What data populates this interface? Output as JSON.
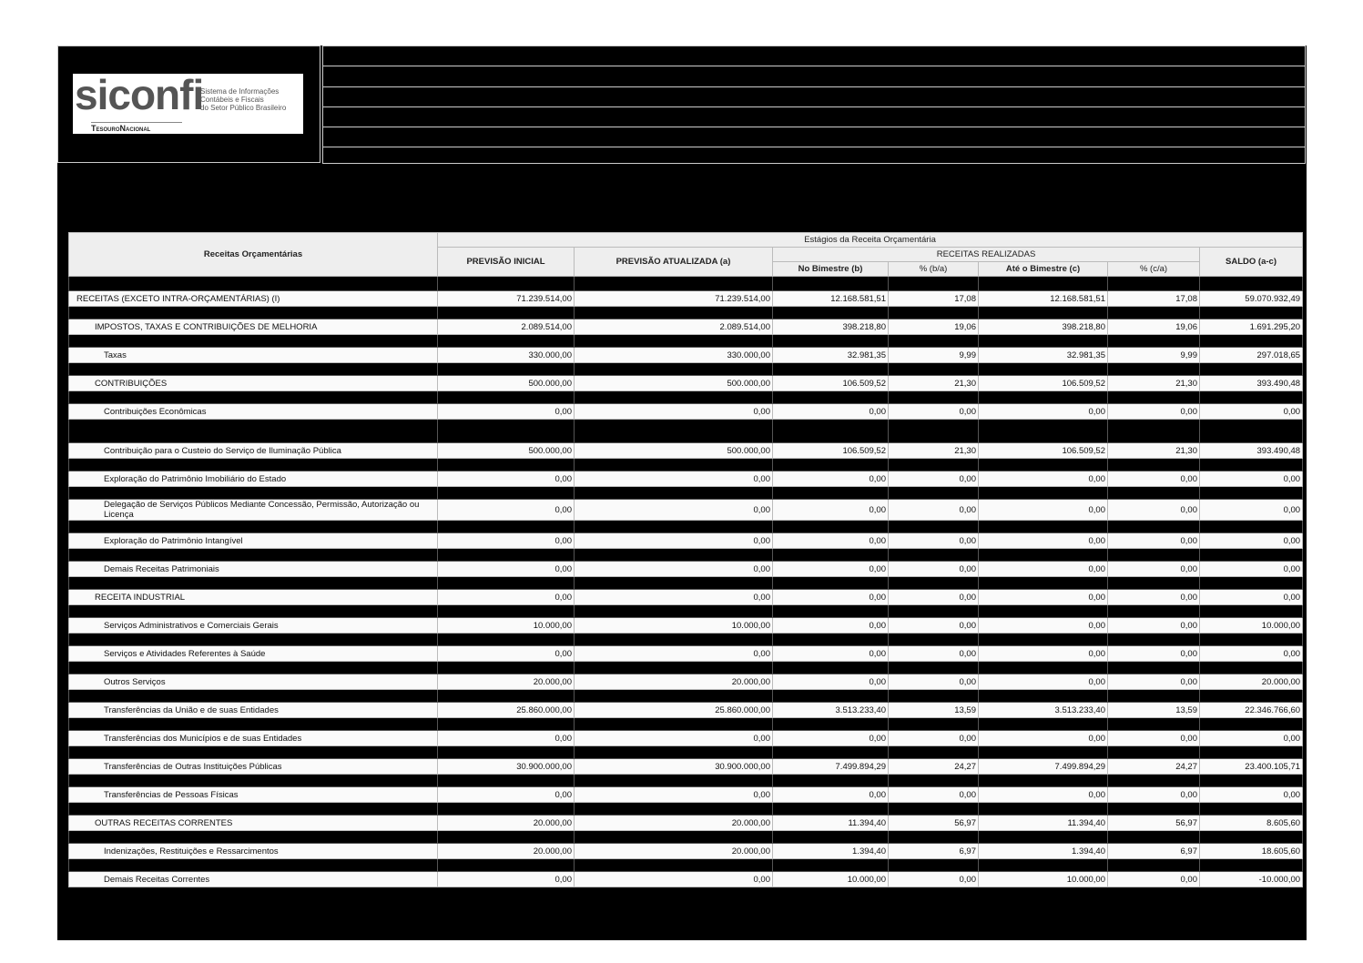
{
  "logo": {
    "brand": "siconfi",
    "tagline": [
      "Sistema de Informações",
      "Contábeis e Fiscais",
      "do Setor Público Brasileiro"
    ],
    "agency": "TesouroNacional"
  },
  "table": {
    "header": {
      "label_column": "Receitas Orçamentárias",
      "group": "Estágios da Receita Orçamentária",
      "initial": "PREVISÃO INICIAL",
      "updated": "PREVISÃO ATUALIZADA (a)",
      "realized": "RECEITAS REALIZADAS",
      "bimester": "No Bimestre (b)",
      "pct_ba": "% (b/a)",
      "to_bimester": "Até o Bimestre (c)",
      "pct_ca": "% (c/a)",
      "balance": "SALDO (a-c)"
    },
    "rows": [
      [
        "RECEITAS (EXCETO INTRA-ORÇAMENTÁRIAS) (I)",
        "71.239.514,00",
        "71.239.514,00",
        "12.168.581,51",
        "17,08",
        "12.168.581,51",
        "17,08",
        "59.070.932,49"
      ],
      [
        "IMPOSTOS, TAXAS E CONTRIBUIÇÕES DE MELHORIA",
        "2.089.514,00",
        "2.089.514,00",
        "398.218,80",
        "19,06",
        "398.218,80",
        "19,06",
        "1.691.295,20"
      ],
      [
        "Taxas",
        "330.000,00",
        "330.000,00",
        "32.981,35",
        "9,99",
        "32.981,35",
        "9,99",
        "297.018,65"
      ],
      [
        "CONTRIBUIÇÕES",
        "500.000,00",
        "500.000,00",
        "106.509,52",
        "21,30",
        "106.509,52",
        "21,30",
        "393.490,48"
      ],
      [
        "Contribuições Econômicas",
        "0,00",
        "0,00",
        "0,00",
        "0,00",
        "0,00",
        "0,00",
        "0,00"
      ],
      [
        "Contribuição para o Custeio do Serviço de Iluminação Pública",
        "500.000,00",
        "500.000,00",
        "106.509,52",
        "21,30",
        "106.509,52",
        "21,30",
        "393.490,48"
      ],
      [
        "Exploração do Patrimônio Imobiliário do Estado",
        "0,00",
        "0,00",
        "0,00",
        "0,00",
        "0,00",
        "0,00",
        "0,00"
      ],
      [
        "Delegação de Serviços Públicos Mediante Concessão, Permissão, Autorização ou Licença",
        "0,00",
        "0,00",
        "0,00",
        "0,00",
        "0,00",
        "0,00",
        "0,00"
      ],
      [
        "Exploração do Patrimônio Intangível",
        "0,00",
        "0,00",
        "0,00",
        "0,00",
        "0,00",
        "0,00",
        "0,00"
      ],
      [
        "Demais Receitas Patrimoniais",
        "0,00",
        "0,00",
        "0,00",
        "0,00",
        "0,00",
        "0,00",
        "0,00"
      ],
      [
        "RECEITA INDUSTRIAL",
        "0,00",
        "0,00",
        "0,00",
        "0,00",
        "0,00",
        "0,00",
        "0,00"
      ],
      [
        "Serviços Administrativos e Comerciais Gerais",
        "10.000,00",
        "10.000,00",
        "0,00",
        "0,00",
        "0,00",
        "0,00",
        "10.000,00"
      ],
      [
        "Serviços e Atividades Referentes à Saúde",
        "0,00",
        "0,00",
        "0,00",
        "0,00",
        "0,00",
        "0,00",
        "0,00"
      ],
      [
        "Outros Serviços",
        "20.000,00",
        "20.000,00",
        "0,00",
        "0,00",
        "0,00",
        "0,00",
        "20.000,00"
      ],
      [
        "Transferências da União e de suas Entidades",
        "25.860.000,00",
        "25.860.000,00",
        "3.513.233,40",
        "13,59",
        "3.513.233,40",
        "13,59",
        "22.346.766,60"
      ],
      [
        "Transferências dos Municípios e de suas Entidades",
        "0,00",
        "0,00",
        "0,00",
        "0,00",
        "0,00",
        "0,00",
        "0,00"
      ],
      [
        "Transferências de Outras Instituições Públicas",
        "30.900.000,00",
        "30.900.000,00",
        "7.499.894,29",
        "24,27",
        "7.499.894,29",
        "24,27",
        "23.400.105,71"
      ],
      [
        "Transferências de Pessoas Físicas",
        "0,00",
        "0,00",
        "0,00",
        "0,00",
        "0,00",
        "0,00",
        "0,00"
      ],
      [
        "OUTRAS RECEITAS CORRENTES",
        "20.000,00",
        "20.000,00",
        "11.394,40",
        "56,97",
        "11.394,40",
        "56,97",
        "8.605,60"
      ],
      [
        "Indenizações, Restituições e Ressarcimentos",
        "20.000,00",
        "20.000,00",
        "1.394,40",
        "6,97",
        "1.394,40",
        "6,97",
        "18.605,60"
      ],
      [
        "Demais Receitas Correntes",
        "0,00",
        "0,00",
        "10.000,00",
        "0,00",
        "10.000,00",
        "0,00",
        "-10.000,00"
      ]
    ]
  }
}
